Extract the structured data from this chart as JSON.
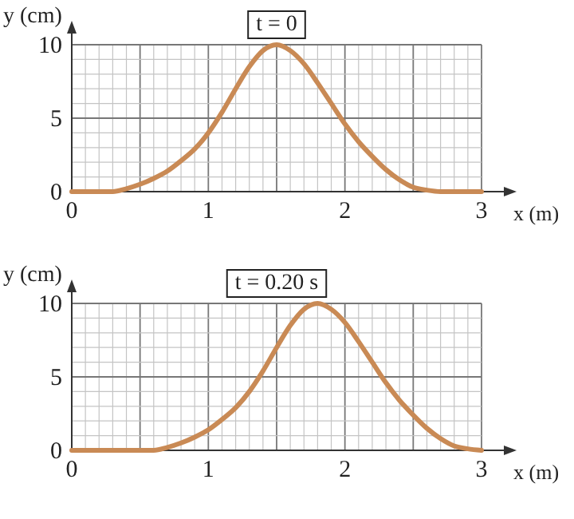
{
  "chart_data": [
    {
      "type": "line",
      "title": "t = 0",
      "xlabel": "x (m)",
      "ylabel": "y (cm)",
      "x": [
        0,
        0.1,
        0.2,
        0.3,
        0.4,
        0.5,
        0.6,
        0.7,
        0.8,
        0.9,
        1.0,
        1.1,
        1.2,
        1.3,
        1.4,
        1.5,
        1.6,
        1.7,
        1.8,
        1.9,
        2.0,
        2.1,
        2.2,
        2.3,
        2.4,
        2.5,
        2.6,
        2.7,
        2.8,
        2.9,
        3.0
      ],
      "series": [
        {
          "color": "#c98a55",
          "values": [
            0,
            0,
            0,
            0,
            0.2,
            0.5,
            0.9,
            1.4,
            2.1,
            2.9,
            4.0,
            5.4,
            7.0,
            8.5,
            9.6,
            10,
            9.6,
            8.7,
            7.4,
            6.0,
            4.6,
            3.4,
            2.4,
            1.5,
            0.8,
            0.3,
            0.1,
            0,
            0,
            0,
            0
          ]
        }
      ],
      "xlim": [
        0,
        3
      ],
      "ylim": [
        0,
        10
      ],
      "xticks": [
        0,
        {
          "value": 0.1,
          "label": null
        },
        {
          "value": 0.2,
          "label": null
        },
        {
          "value": 0.3,
          "label": null
        },
        {
          "value": 0.4,
          "label": null
        },
        {
          "value": 0.5,
          "label": null
        },
        {
          "value": 0.6,
          "label": null
        },
        {
          "value": 0.7,
          "label": null
        },
        {
          "value": 0.8,
          "label": null
        },
        {
          "value": 0.9,
          "label": null
        },
        1,
        {
          "value": 1.1,
          "label": null
        },
        {
          "value": 1.2,
          "label": null
        },
        {
          "value": 1.3,
          "label": null
        },
        {
          "value": 1.4,
          "label": null
        },
        {
          "value": 1.5,
          "label": null
        },
        {
          "value": 1.6,
          "label": null
        },
        {
          "value": 1.7,
          "label": null
        },
        {
          "value": 1.8,
          "label": null
        },
        {
          "value": 1.9,
          "label": null
        },
        2,
        {
          "value": 2.1,
          "label": null
        },
        {
          "value": 2.2,
          "label": null
        },
        {
          "value": 2.3,
          "label": null
        },
        {
          "value": 2.4,
          "label": null
        },
        {
          "value": 2.5,
          "label": null
        },
        {
          "value": 2.6,
          "label": null
        },
        {
          "value": 2.7,
          "label": null
        },
        {
          "value": 2.8,
          "label": null
        },
        {
          "value": 2.9,
          "label": null
        },
        3
      ],
      "yticks": [
        0,
        {
          "value": 1,
          "label": null
        },
        {
          "value": 2,
          "label": null
        },
        {
          "value": 3,
          "label": null
        },
        {
          "value": 4,
          "label": null
        },
        5,
        {
          "value": 6,
          "label": null
        },
        {
          "value": 7,
          "label": null
        },
        {
          "value": 8,
          "label": null
        },
        {
          "value": 9,
          "label": null
        },
        10
      ],
      "grid": true,
      "marker": "none",
      "line_style": "solid"
    },
    {
      "type": "line",
      "title": "t = 0.20 s",
      "xlabel": "x (m)",
      "ylabel": "y (cm)",
      "x": [
        0,
        0.1,
        0.2,
        0.3,
        0.4,
        0.5,
        0.6,
        0.7,
        0.8,
        0.9,
        1.0,
        1.1,
        1.2,
        1.3,
        1.4,
        1.5,
        1.6,
        1.7,
        1.8,
        1.9,
        2.0,
        2.1,
        2.2,
        2.3,
        2.4,
        2.5,
        2.6,
        2.7,
        2.8,
        2.9,
        3.0
      ],
      "series": [
        {
          "color": "#c98a55",
          "values": [
            0,
            0,
            0,
            0,
            0,
            0,
            0,
            0.2,
            0.5,
            0.9,
            1.4,
            2.1,
            2.9,
            4.0,
            5.4,
            7.0,
            8.5,
            9.6,
            10,
            9.6,
            8.7,
            7.4,
            6.0,
            4.6,
            3.4,
            2.4,
            1.5,
            0.8,
            0.3,
            0.1,
            0
          ]
        }
      ],
      "xlim": [
        0,
        3
      ],
      "ylim": [
        0,
        10
      ],
      "xticks": [
        0,
        {
          "value": 0.1,
          "label": null
        },
        {
          "value": 0.2,
          "label": null
        },
        {
          "value": 0.3,
          "label": null
        },
        {
          "value": 0.4,
          "label": null
        },
        {
          "value": 0.5,
          "label": null
        },
        {
          "value": 0.6,
          "label": null
        },
        {
          "value": 0.7,
          "label": null
        },
        {
          "value": 0.8,
          "label": null
        },
        {
          "value": 0.9,
          "label": null
        },
        1,
        {
          "value": 1.1,
          "label": null
        },
        {
          "value": 1.2,
          "label": null
        },
        {
          "value": 1.3,
          "label": null
        },
        {
          "value": 1.4,
          "label": null
        },
        {
          "value": 1.5,
          "label": null
        },
        {
          "value": 1.6,
          "label": null
        },
        {
          "value": 1.7,
          "label": null
        },
        {
          "value": 1.8,
          "label": null
        },
        {
          "value": 1.9,
          "label": null
        },
        2,
        {
          "value": 2.1,
          "label": null
        },
        {
          "value": 2.2,
          "label": null
        },
        {
          "value": 2.3,
          "label": null
        },
        {
          "value": 2.4,
          "label": null
        },
        {
          "value": 2.5,
          "label": null
        },
        {
          "value": 2.6,
          "label": null
        },
        {
          "value": 2.7,
          "label": null
        },
        {
          "value": 2.8,
          "label": null
        },
        {
          "value": 2.9,
          "label": null
        },
        3
      ],
      "yticks": [
        0,
        {
          "value": 1,
          "label": null
        },
        {
          "value": 2,
          "label": null
        },
        {
          "value": 3,
          "label": null
        },
        {
          "value": 4,
          "label": null
        },
        5,
        {
          "value": 6,
          "label": null
        },
        {
          "value": 7,
          "label": null
        },
        {
          "value": 8,
          "label": null
        },
        {
          "value": 9,
          "label": null
        },
        10
      ],
      "grid": true,
      "marker": "none",
      "line_style": "solid"
    }
  ]
}
